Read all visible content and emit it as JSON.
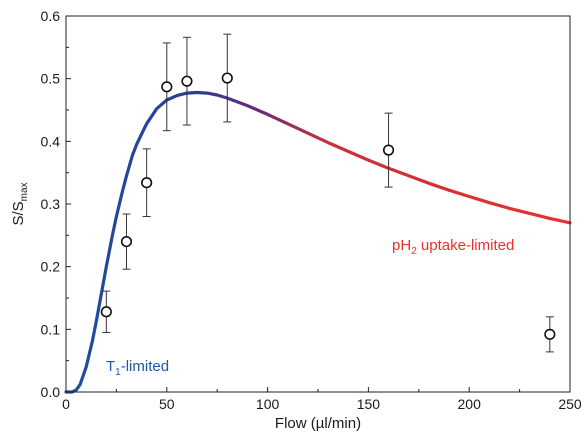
{
  "chart_data": {
    "type": "scatter",
    "title": "",
    "xlabel": "Flow (µl/min)",
    "ylabel": {
      "main": "S/S",
      "sub": "max"
    },
    "xlim": [
      0,
      250
    ],
    "ylim": [
      0,
      0.6
    ],
    "x_ticks": [
      0,
      50,
      100,
      150,
      200,
      250
    ],
    "y_ticks": [
      0.0,
      0.1,
      0.2,
      0.3,
      0.4,
      0.5,
      0.6
    ],
    "y_tick_labels": [
      "0.0",
      "0.1",
      "0.2",
      "0.3",
      "0.4",
      "0.5",
      "0.6"
    ],
    "grid": false,
    "series": [
      {
        "kind": "points_with_error",
        "marker": "open-circle",
        "points": [
          {
            "x": 20,
            "y": 0.128,
            "err": 0.033
          },
          {
            "x": 30,
            "y": 0.24,
            "err": 0.044
          },
          {
            "x": 40,
            "y": 0.334,
            "err": 0.054
          },
          {
            "x": 50,
            "y": 0.487,
            "err": 0.07
          },
          {
            "x": 60,
            "y": 0.496,
            "err": 0.07
          },
          {
            "x": 80,
            "y": 0.501,
            "err": 0.07
          },
          {
            "x": 160,
            "y": 0.386,
            "err": 0.059
          },
          {
            "x": 240,
            "y": 0.092,
            "err": 0.028
          }
        ]
      },
      {
        "kind": "model_curve",
        "color_start": "#1f4e9c",
        "color_end": "#e8312b",
        "points": [
          [
            0,
            0.0
          ],
          [
            3,
            0.0
          ],
          [
            5,
            0.003
          ],
          [
            7,
            0.012
          ],
          [
            10,
            0.04
          ],
          [
            13,
            0.08
          ],
          [
            15,
            0.112
          ],
          [
            18,
            0.165
          ],
          [
            20,
            0.2
          ],
          [
            23,
            0.25
          ],
          [
            25,
            0.28
          ],
          [
            28,
            0.32
          ],
          [
            30,
            0.345
          ],
          [
            33,
            0.378
          ],
          [
            35,
            0.395
          ],
          [
            38,
            0.415
          ],
          [
            40,
            0.428
          ],
          [
            45,
            0.452
          ],
          [
            50,
            0.466
          ],
          [
            55,
            0.473
          ],
          [
            60,
            0.477
          ],
          [
            65,
            0.478
          ],
          [
            70,
            0.477
          ],
          [
            75,
            0.474
          ],
          [
            80,
            0.469
          ],
          [
            90,
            0.457
          ],
          [
            100,
            0.443
          ],
          [
            110,
            0.428
          ],
          [
            120,
            0.413
          ],
          [
            130,
            0.398
          ],
          [
            140,
            0.384
          ],
          [
            150,
            0.37
          ],
          [
            160,
            0.357
          ],
          [
            170,
            0.345
          ],
          [
            180,
            0.333
          ],
          [
            190,
            0.322
          ],
          [
            200,
            0.312
          ],
          [
            210,
            0.302
          ],
          [
            220,
            0.293
          ],
          [
            230,
            0.285
          ],
          [
            240,
            0.277
          ],
          [
            250,
            0.27
          ]
        ]
      }
    ],
    "annotations": [
      {
        "id": "t1",
        "main": "T",
        "sub": "1",
        "rest": "-limited",
        "color": "#1f56a8"
      },
      {
        "id": "ph2",
        "main": "pH",
        "sub": "2",
        "rest": " uptake-limited",
        "color": "#e8312b"
      }
    ]
  }
}
